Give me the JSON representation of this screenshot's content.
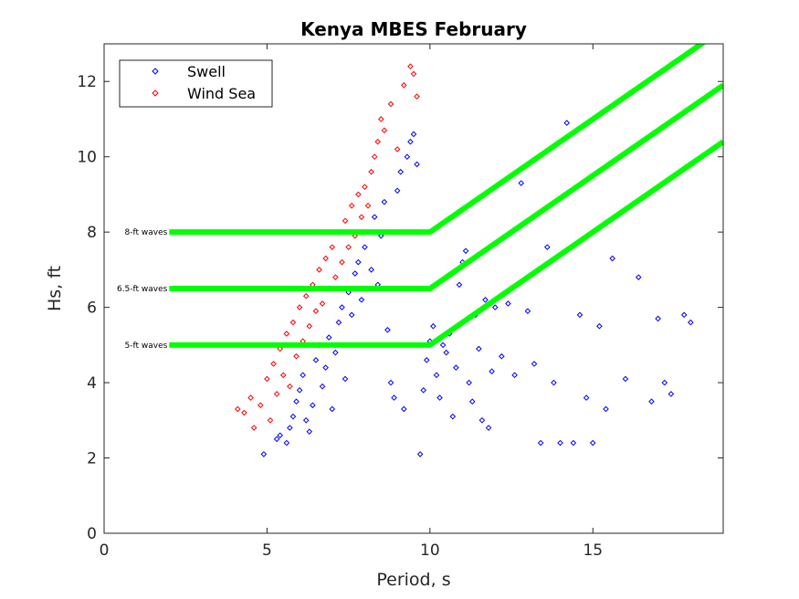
{
  "chart_data": {
    "type": "scatter",
    "title": "Kenya MBES February",
    "xlabel": "Period, s",
    "ylabel": "Hs, ft",
    "xlim": [
      0,
      19
    ],
    "ylim": [
      0,
      13
    ],
    "xticks": [
      0,
      5,
      10,
      15
    ],
    "yticks": [
      0,
      2,
      4,
      6,
      8,
      10,
      12
    ],
    "grid": false,
    "legend": {
      "placement": "top-left",
      "entries": [
        "Swell",
        "Wind Sea"
      ]
    },
    "colors": {
      "swell": "#0000ff",
      "wind_sea": "#ff0000",
      "threshold": "#00ff00"
    },
    "series": [
      {
        "name": "Swell",
        "marker": "diamond",
        "color": "#0000ff",
        "points": [
          [
            4.9,
            2.1
          ],
          [
            5.3,
            2.5
          ],
          [
            5.4,
            2.6
          ],
          [
            5.6,
            2.4
          ],
          [
            5.7,
            2.8
          ],
          [
            5.8,
            3.1
          ],
          [
            5.9,
            3.5
          ],
          [
            6.0,
            3.8
          ],
          [
            6.1,
            4.2
          ],
          [
            6.2,
            3.0
          ],
          [
            6.3,
            2.7
          ],
          [
            6.4,
            3.4
          ],
          [
            6.5,
            4.6
          ],
          [
            6.6,
            5.0
          ],
          [
            6.7,
            3.9
          ],
          [
            6.8,
            4.4
          ],
          [
            6.9,
            5.2
          ],
          [
            7.0,
            3.3
          ],
          [
            7.1,
            4.8
          ],
          [
            7.2,
            5.6
          ],
          [
            7.3,
            6.0
          ],
          [
            7.4,
            4.1
          ],
          [
            7.5,
            6.4
          ],
          [
            7.6,
            5.8
          ],
          [
            7.7,
            6.9
          ],
          [
            7.8,
            7.2
          ],
          [
            7.9,
            6.2
          ],
          [
            8.0,
            7.6
          ],
          [
            8.1,
            8.0
          ],
          [
            8.2,
            7.0
          ],
          [
            8.3,
            8.4
          ],
          [
            8.4,
            6.6
          ],
          [
            8.5,
            7.9
          ],
          [
            8.6,
            8.8
          ],
          [
            8.7,
            5.4
          ],
          [
            8.8,
            4.0
          ],
          [
            8.9,
            3.6
          ],
          [
            9.0,
            9.1
          ],
          [
            9.1,
            9.6
          ],
          [
            9.2,
            3.3
          ],
          [
            9.3,
            10.0
          ],
          [
            9.4,
            10.4
          ],
          [
            9.5,
            10.6
          ],
          [
            9.6,
            9.8
          ],
          [
            9.7,
            2.1
          ],
          [
            9.8,
            3.8
          ],
          [
            9.9,
            4.6
          ],
          [
            10.0,
            5.1
          ],
          [
            10.1,
            5.5
          ],
          [
            10.2,
            4.2
          ],
          [
            10.3,
            3.6
          ],
          [
            10.4,
            5.0
          ],
          [
            10.5,
            4.8
          ],
          [
            10.6,
            5.3
          ],
          [
            10.7,
            3.1
          ],
          [
            10.8,
            4.4
          ],
          [
            10.9,
            6.6
          ],
          [
            11.0,
            7.2
          ],
          [
            11.1,
            7.5
          ],
          [
            11.2,
            4.0
          ],
          [
            11.3,
            3.5
          ],
          [
            11.4,
            5.8
          ],
          [
            11.5,
            4.9
          ],
          [
            11.6,
            3.0
          ],
          [
            11.7,
            6.2
          ],
          [
            11.8,
            2.8
          ],
          [
            11.9,
            4.3
          ],
          [
            12.0,
            6.0
          ],
          [
            12.2,
            4.7
          ],
          [
            12.4,
            6.1
          ],
          [
            12.6,
            4.2
          ],
          [
            12.8,
            9.3
          ],
          [
            13.0,
            5.9
          ],
          [
            13.2,
            4.5
          ],
          [
            13.4,
            2.4
          ],
          [
            13.6,
            7.6
          ],
          [
            13.8,
            4.0
          ],
          [
            14.0,
            2.4
          ],
          [
            14.2,
            10.9
          ],
          [
            14.4,
            2.4
          ],
          [
            14.6,
            5.8
          ],
          [
            14.8,
            3.6
          ],
          [
            15.0,
            2.4
          ],
          [
            15.2,
            5.5
          ],
          [
            15.4,
            3.3
          ],
          [
            15.6,
            7.3
          ],
          [
            16.0,
            4.1
          ],
          [
            16.4,
            6.8
          ],
          [
            16.8,
            3.5
          ],
          [
            17.0,
            5.7
          ],
          [
            17.2,
            4.0
          ],
          [
            17.4,
            3.7
          ],
          [
            17.8,
            5.8
          ],
          [
            18.0,
            5.6
          ]
        ]
      },
      {
        "name": "Wind Sea",
        "marker": "diamond",
        "color": "#ff0000",
        "points": [
          [
            4.1,
            3.3
          ],
          [
            4.3,
            3.2
          ],
          [
            4.5,
            3.6
          ],
          [
            4.6,
            2.8
          ],
          [
            4.8,
            3.4
          ],
          [
            5.0,
            4.1
          ],
          [
            5.1,
            3.0
          ],
          [
            5.2,
            4.5
          ],
          [
            5.3,
            3.7
          ],
          [
            5.4,
            4.9
          ],
          [
            5.5,
            4.2
          ],
          [
            5.6,
            5.3
          ],
          [
            5.7,
            3.9
          ],
          [
            5.8,
            5.6
          ],
          [
            5.9,
            4.7
          ],
          [
            6.0,
            6.0
          ],
          [
            6.1,
            5.1
          ],
          [
            6.2,
            6.3
          ],
          [
            6.3,
            5.5
          ],
          [
            6.4,
            6.6
          ],
          [
            6.5,
            5.9
          ],
          [
            6.6,
            7.0
          ],
          [
            6.7,
            6.1
          ],
          [
            6.8,
            7.3
          ],
          [
            6.9,
            6.5
          ],
          [
            7.0,
            7.6
          ],
          [
            7.1,
            6.8
          ],
          [
            7.2,
            8.0
          ],
          [
            7.3,
            7.2
          ],
          [
            7.4,
            8.3
          ],
          [
            7.5,
            7.6
          ],
          [
            7.6,
            8.7
          ],
          [
            7.7,
            7.9
          ],
          [
            7.8,
            9.0
          ],
          [
            7.9,
            8.4
          ],
          [
            8.0,
            9.2
          ],
          [
            8.1,
            8.7
          ],
          [
            8.2,
            9.6
          ],
          [
            8.3,
            10.0
          ],
          [
            8.4,
            10.4
          ],
          [
            8.5,
            11.0
          ],
          [
            8.6,
            10.7
          ],
          [
            8.8,
            11.4
          ],
          [
            9.0,
            10.2
          ],
          [
            9.2,
            11.9
          ],
          [
            9.4,
            12.4
          ],
          [
            9.5,
            12.2
          ],
          [
            9.6,
            11.6
          ]
        ]
      },
      {
        "name": "",
        "type": "line",
        "color": "#00ff00",
        "annotation": "8-ft waves",
        "points": [
          [
            2,
            8
          ],
          [
            10,
            8
          ],
          [
            19,
            13.4
          ]
        ]
      },
      {
        "name": "",
        "type": "line",
        "color": "#00ff00",
        "annotation": "6.5-ft waves",
        "points": [
          [
            2,
            6.5
          ],
          [
            10,
            6.5
          ],
          [
            19,
            11.9
          ]
        ]
      },
      {
        "name": "",
        "type": "line",
        "color": "#00ff00",
        "annotation": "5-ft waves",
        "points": [
          [
            2,
            5
          ],
          [
            10,
            5
          ],
          [
            19,
            10.4
          ]
        ]
      }
    ]
  }
}
